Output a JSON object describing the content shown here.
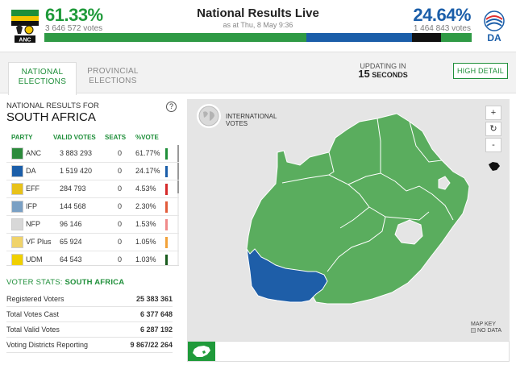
{
  "header": {
    "title": "National Results Live",
    "as_at": "as at Thu, 8 May 9:36",
    "anc": {
      "pct": "61.33%",
      "votes": "3 646 572 votes",
      "logo_text": "ANC"
    },
    "da": {
      "pct": "24.64%",
      "votes": "1 464 843 votes",
      "logo_text": "DA"
    },
    "bar": [
      {
        "party": "ANC",
        "share": 61.33,
        "color": "#2f9a45"
      },
      {
        "party": "DA",
        "share": 24.64,
        "color": "#1b5ea9"
      },
      {
        "party": "EFF",
        "share": 6.8,
        "color": "#111111"
      },
      {
        "party": "other",
        "share": 7.23,
        "color": "#2f9a45"
      }
    ]
  },
  "tabs": {
    "national_line1": "NATIONAL",
    "national_line2": "ELECTIONS",
    "provincial_line1": "PROVINCIAL",
    "provincial_line2": "ELECTIONS",
    "updating_label": "UPDATING IN",
    "updating_number": "15",
    "updating_unit": "SECONDS",
    "high_detail": "HIGH DETAIL"
  },
  "results": {
    "label": "NATIONAL RESULTS FOR",
    "place": "SOUTH AFRICA",
    "help": "?",
    "columns": {
      "party": "PARTY",
      "valid_votes": "VALID VOTES",
      "seats": "SEATS",
      "pct_vote": "%VOTE"
    },
    "rows": [
      {
        "party": "ANC",
        "votes": "3 883 293",
        "seats": "0",
        "pct": "61.77%",
        "color": "#1f8f3a",
        "logo": "#2c8a3c"
      },
      {
        "party": "DA",
        "votes": "1 519 420",
        "seats": "0",
        "pct": "24.17%",
        "color": "#1b5ea9",
        "logo": "#1b5ea9"
      },
      {
        "party": "EFF",
        "votes": "284 793",
        "seats": "0",
        "pct": "4.53%",
        "color": "#d62b2b",
        "logo": "#e8c21a"
      },
      {
        "party": "IFP",
        "votes": "144 568",
        "seats": "0",
        "pct": "2.30%",
        "color": "#e25b3a",
        "logo": "#7aa0c4"
      },
      {
        "party": "NFP",
        "votes": "96 146",
        "seats": "0",
        "pct": "1.53%",
        "color": "#f08a8a",
        "logo": "#d8d8d8"
      },
      {
        "party": "VF Plus",
        "votes": "65 924",
        "seats": "0",
        "pct": "1.05%",
        "color": "#f2a23a",
        "logo": "#f0d36a"
      },
      {
        "party": "UDM",
        "votes": "64 543",
        "seats": "0",
        "pct": "1.03%",
        "color": "#1a5c1e",
        "logo": "#f0d000"
      }
    ]
  },
  "voter_stats": {
    "title_prefix": "VOTER STATS: ",
    "title_place": "SOUTH AFRICA",
    "rows": [
      {
        "key": "Registered Voters",
        "value": "25 383 361"
      },
      {
        "key": "Total Votes Cast",
        "value": "6 377 648"
      },
      {
        "key": "Total Valid Votes",
        "value": "6 287 192"
      },
      {
        "key": "Voting Districts Reporting",
        "value": "9 867/22 264"
      }
    ]
  },
  "map": {
    "intl_line1": "INTERNATIONAL",
    "intl_line2": "VOTES",
    "zoom_in": "+",
    "refresh": "↻",
    "zoom_out": "-",
    "key_title": "MAP KEY",
    "key_nodata": "NO DATA",
    "colors": {
      "anc": "#5aad5e",
      "da": "#1e5ea8",
      "border": "#ffffff"
    }
  }
}
